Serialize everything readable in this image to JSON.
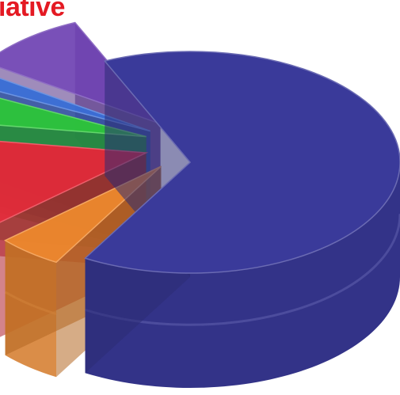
{
  "heading": {
    "text": "iative",
    "color": "#e41a23"
  },
  "chart_data": {
    "type": "pie",
    "style": "3d-cylinder",
    "title": "",
    "labels_shown": false,
    "series": [
      {
        "name": "",
        "color": "#3a3a9a",
        "value": 65,
        "exploded": false
      },
      {
        "name": "",
        "color": "#f08a2e",
        "value": 5,
        "exploded": true
      },
      {
        "name": "",
        "color": "#e8283a",
        "value": 14,
        "exploded": true
      },
      {
        "name": "",
        "color": "#2ec83a",
        "value": 5,
        "exploded": true
      },
      {
        "name": "",
        "color": "#3a6fd8",
        "value": 2,
        "exploded": true
      },
      {
        "name": "",
        "color": "#6a3db0",
        "value": 9,
        "exploded": true
      }
    ]
  }
}
